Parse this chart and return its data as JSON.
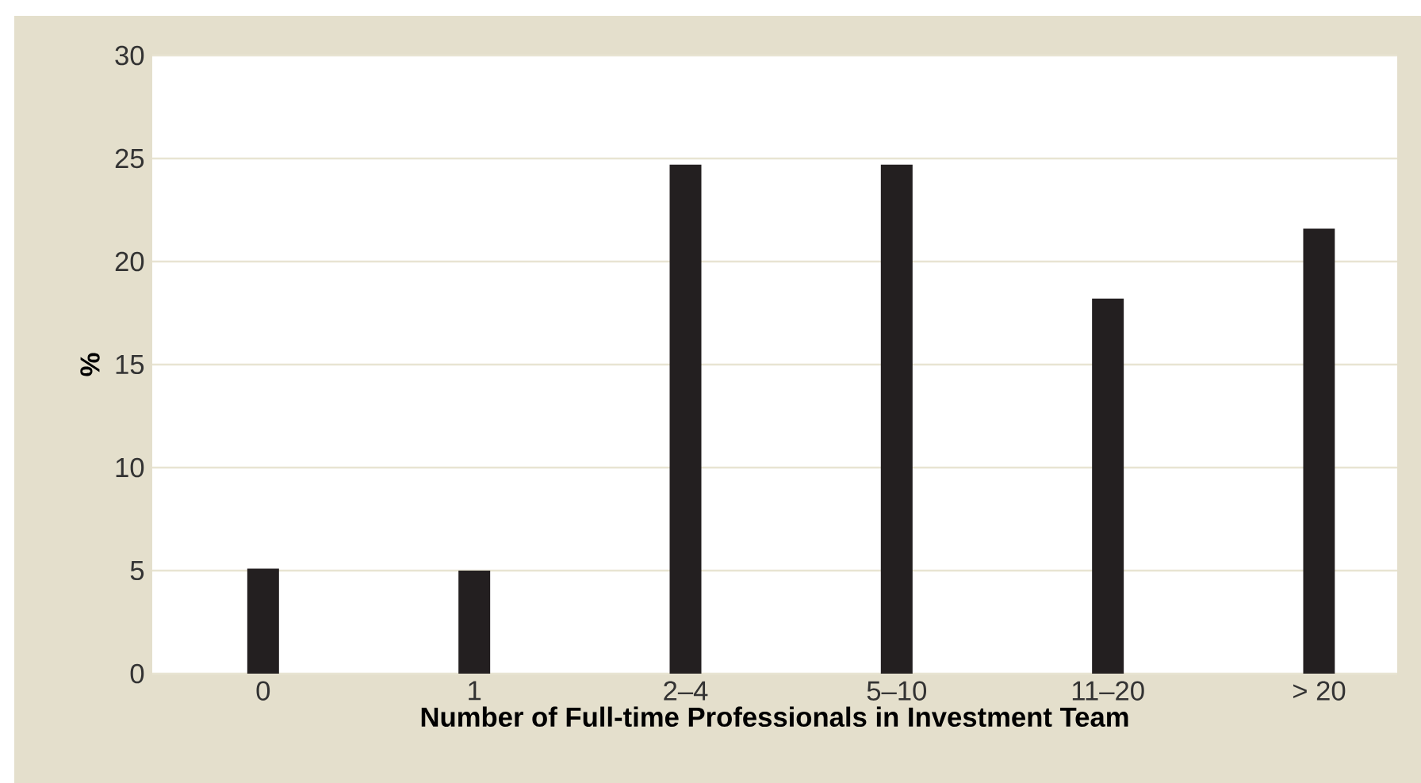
{
  "chart_data": {
    "type": "bar",
    "xlabel": "Number of Full-time Professionals in Investment Team",
    "ylabel": "%",
    "categories": [
      "0",
      "1",
      "2–4",
      "5–10",
      "11–20",
      "> 20"
    ],
    "values": [
      5.1,
      5.0,
      24.7,
      24.7,
      18.2,
      21.6
    ],
    "color": "#231f20",
    "ylim": [
      0,
      30
    ],
    "yticks": [
      0,
      5,
      10,
      15,
      20,
      25,
      30
    ],
    "grid": "y"
  }
}
